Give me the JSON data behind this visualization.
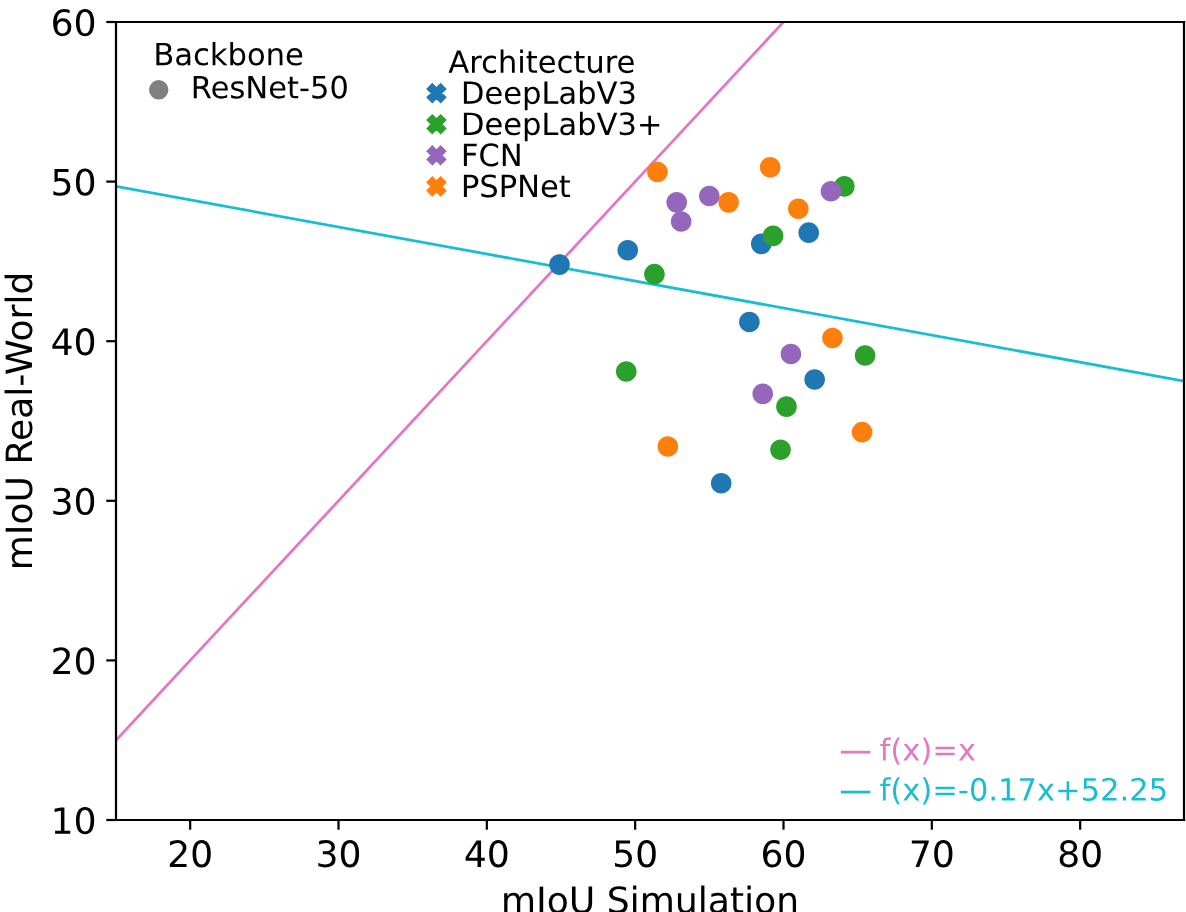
{
  "chart_data": {
    "type": "scatter",
    "xlabel": "mIoU Simulation",
    "ylabel": "mIoU Real-World",
    "legend_title": "Architecture",
    "legend": "top left",
    "grid": false,
    "xlim": [
      15,
      87
    ],
    "xticks": [
      20,
      30,
      40,
      50,
      60,
      70,
      80
    ],
    "ylim": [
      10,
      60
    ],
    "yticks": [
      10,
      20,
      30,
      40,
      50,
      60
    ],
    "annotations": [
      "Backbone",
      "ResNet-50",
      "f(x)=x",
      "f(x)=-0.17x+52.25"
    ],
    "series": [
      {
        "name": "DeepLabV3",
        "color": "#1f77b4",
        "marker": "circle",
        "x": [
          44.9,
          49.5,
          58.5,
          61.7,
          57.7,
          62.1,
          55.8
        ],
        "values": [
          44.8,
          45.7,
          46.1,
          46.8,
          41.2,
          37.6,
          31.1
        ]
      },
      {
        "name": "DeepLabV3+",
        "color": "#2ca02c",
        "marker": "circle",
        "x": [
          64.1,
          59.3,
          51.3,
          49.4,
          65.5,
          60.2,
          59.8
        ],
        "values": [
          49.7,
          46.6,
          44.2,
          38.1,
          39.1,
          35.9,
          33.2
        ]
      },
      {
        "name": "FCN",
        "color": "#9467bd",
        "marker": "circle",
        "x": [
          63.2,
          52.8,
          55.0,
          53.1,
          60.5,
          58.6
        ],
        "values": [
          49.4,
          48.7,
          49.1,
          47.5,
          39.2,
          36.7
        ]
      },
      {
        "name": "PSPNet",
        "color": "#ff7f0e",
        "marker": "circle",
        "x": [
          51.5,
          59.1,
          56.3,
          61.0,
          63.3,
          52.2,
          65.3
        ],
        "values": [
          50.6,
          50.9,
          48.7,
          48.3,
          40.2,
          33.4,
          34.3
        ]
      },
      {
        "type": "line",
        "marker": "none",
        "color": "#e377c2",
        "x": [
          15,
          60
        ],
        "values": [
          15,
          60
        ]
      },
      {
        "type": "line",
        "marker": "none",
        "color": "#17becf",
        "x": [
          15,
          87
        ],
        "values": [
          49.7,
          37.5
        ]
      }
    ]
  }
}
